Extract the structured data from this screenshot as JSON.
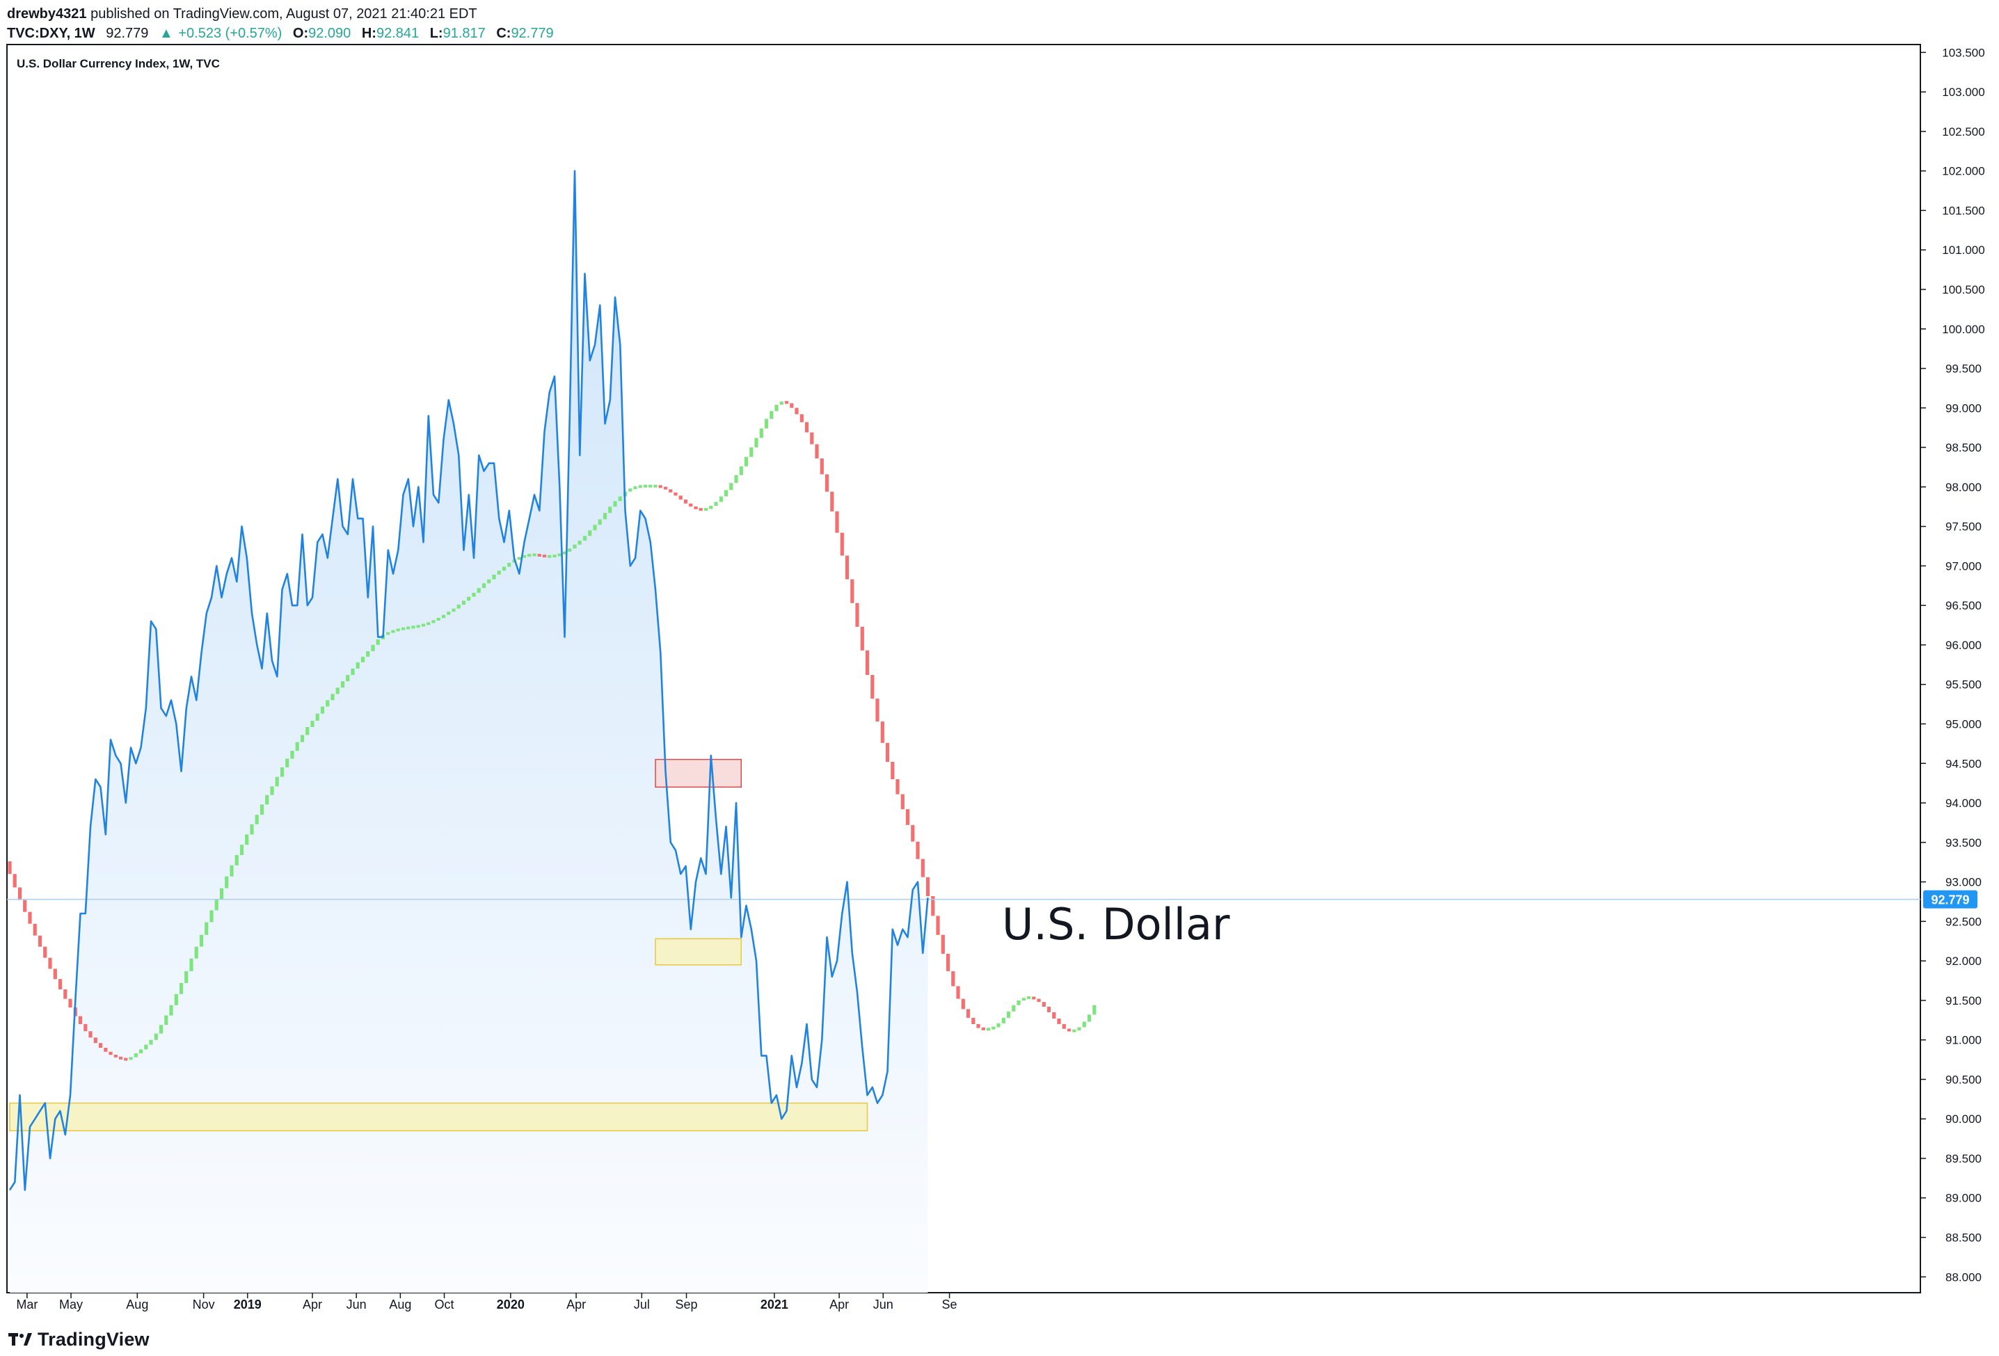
{
  "header": {
    "author": "drewby4321",
    "published_text": "published on TradingView.com, August 07, 2021 21:40:21 EDT",
    "symbol": "TVC:DXY, 1W",
    "last": "92.779",
    "change_arrow": "▲",
    "change": "+0.523 (+0.57%)",
    "o_label": "O:",
    "o_value": "92.090",
    "h_label": "H:",
    "h_value": "92.841",
    "l_label": "L:",
    "l_value": "91.817",
    "c_label": "C:",
    "c_value": "92.779"
  },
  "footer": {
    "brand": "TradingView"
  },
  "colors": {
    "line": "#2183e0",
    "area_top": "#cfe5fa",
    "area_bottom": "#fafcff",
    "ma_up": "#7ee57e",
    "ma_down": "#f46f70",
    "zone_yellow_fill": "#f6f2bf",
    "zone_yellow_stroke": "#e8c840",
    "zone_red_fill": "#f7d8d8",
    "zone_red_stroke": "#d84a4a",
    "price_tag": "#2196f3",
    "price_line": "#a9cfee"
  },
  "chart_data": {
    "type": "area",
    "title": "U.S. Dollar Currency Index, 1W, TVC",
    "annotation": "U.S. Dollar",
    "interval": "1W",
    "y_axis": {
      "position": "right",
      "ylim": [
        87.8,
        103.6
      ],
      "ticks": [
        "88.000",
        "88.500",
        "89.000",
        "89.500",
        "90.000",
        "90.500",
        "91.000",
        "91.500",
        "92.000",
        "92.500",
        "93.000",
        "93.500",
        "94.000",
        "94.500",
        "95.000",
        "95.500",
        "96.000",
        "96.500",
        "97.000",
        "97.500",
        "98.000",
        "98.500",
        "99.000",
        "99.500",
        "100.000",
        "100.500",
        "101.000",
        "101.500",
        "102.000",
        "102.500",
        "103.000",
        "103.500"
      ]
    },
    "x_axis": {
      "labels": [
        {
          "text": "Mar",
          "date": "2018-03-01"
        },
        {
          "text": "May",
          "date": "2018-05-01"
        },
        {
          "text": "Aug",
          "date": "2018-08-01"
        },
        {
          "text": "Nov",
          "date": "2018-11-01"
        },
        {
          "text": "2019",
          "date": "2019-01-01",
          "bold": true
        },
        {
          "text": "Apr",
          "date": "2019-04-01"
        },
        {
          "text": "Jun",
          "date": "2019-06-01"
        },
        {
          "text": "Aug",
          "date": "2019-08-01"
        },
        {
          "text": "Oct",
          "date": "2019-10-01"
        },
        {
          "text": "2020",
          "date": "2020-01-01",
          "bold": true
        },
        {
          "text": "Apr",
          "date": "2020-04-01"
        },
        {
          "text": "Jul",
          "date": "2020-07-01"
        },
        {
          "text": "Sep",
          "date": "2020-09-01"
        },
        {
          "text": "2021",
          "date": "2021-01-01",
          "bold": true
        },
        {
          "text": "Apr",
          "date": "2021-04-01"
        },
        {
          "text": "Jun",
          "date": "2021-06-01"
        },
        {
          "text": "Se",
          "date": "2021-09-01"
        }
      ]
    },
    "last_price": "92.779",
    "series": [
      {
        "name": "TVC:DXY",
        "style": "line-area",
        "values": [
          89.1,
          89.2,
          90.3,
          89.1,
          89.9,
          90.0,
          90.1,
          90.2,
          89.5,
          90.0,
          90.1,
          89.8,
          90.3,
          91.5,
          92.6,
          92.6,
          93.7,
          94.3,
          94.2,
          93.6,
          94.8,
          94.6,
          94.5,
          94.0,
          94.7,
          94.5,
          94.7,
          95.2,
          96.3,
          96.2,
          95.2,
          95.1,
          95.3,
          95.0,
          94.4,
          95.2,
          95.6,
          95.3,
          95.9,
          96.4,
          96.6,
          97.0,
          96.6,
          96.9,
          97.1,
          96.8,
          97.5,
          97.1,
          96.4,
          96.0,
          95.7,
          96.4,
          95.8,
          95.6,
          96.7,
          96.9,
          96.5,
          96.5,
          97.4,
          96.5,
          96.6,
          97.3,
          97.4,
          97.1,
          97.6,
          98.1,
          97.5,
          97.4,
          98.1,
          97.6,
          97.6,
          96.6,
          97.5,
          96.1,
          96.1,
          97.2,
          96.9,
          97.2,
          97.9,
          98.1,
          97.5,
          98.0,
          97.3,
          98.9,
          97.9,
          97.8,
          98.6,
          99.1,
          98.8,
          98.4,
          97.2,
          97.9,
          97.1,
          98.4,
          98.2,
          98.3,
          98.3,
          97.6,
          97.3,
          97.7,
          97.1,
          96.9,
          97.3,
          97.6,
          97.9,
          97.7,
          98.7,
          99.2,
          99.4,
          98.0,
          96.1,
          98.9,
          102.0,
          98.4,
          100.7,
          99.6,
          99.8,
          100.3,
          98.8,
          99.1,
          100.4,
          99.8,
          97.7,
          97.0,
          97.1,
          97.7,
          97.6,
          97.3,
          96.7,
          95.9,
          94.4,
          93.5,
          93.4,
          93.1,
          93.2,
          92.4,
          93.0,
          93.3,
          93.1,
          94.6,
          93.8,
          93.1,
          93.7,
          92.8,
          94.0,
          92.3,
          92.7,
          92.4,
          92.0,
          90.8,
          90.8,
          90.2,
          90.3,
          90.0,
          90.1,
          90.8,
          90.4,
          90.7,
          91.2,
          90.5,
          90.4,
          91.0,
          92.3,
          91.8,
          92.0,
          92.6,
          93.0,
          92.1,
          91.6,
          90.9,
          90.3,
          90.4,
          90.2,
          90.3,
          90.6,
          92.4,
          92.2,
          92.4,
          92.3,
          92.9,
          93.0,
          92.1,
          92.8
        ]
      },
      {
        "name": "Moving average (bars, green = rising, red = falling)",
        "style": "ma-bars",
        "start_index": 0,
        "values": [
          93.1,
          92.93,
          92.77,
          92.62,
          92.47,
          92.32,
          92.18,
          92.04,
          91.9,
          91.77,
          91.64,
          91.52,
          91.41,
          91.3,
          91.2,
          91.11,
          91.03,
          90.96,
          90.9,
          90.85,
          90.81,
          90.78,
          90.76,
          90.75,
          90.78,
          90.83,
          90.88,
          90.94,
          91.0,
          91.08,
          91.19,
          91.31,
          91.44,
          91.58,
          91.72,
          91.87,
          92.03,
          92.18,
          92.33,
          92.49,
          92.64,
          92.78,
          92.92,
          93.07,
          93.21,
          93.34,
          93.47,
          93.6,
          93.73,
          93.85,
          93.98,
          94.1,
          94.21,
          94.33,
          94.45,
          94.56,
          94.66,
          94.77,
          94.86,
          94.96,
          95.04,
          95.13,
          95.22,
          95.3,
          95.38,
          95.46,
          95.54,
          95.62,
          95.7,
          95.78,
          95.85,
          95.92,
          96.0,
          96.07,
          96.13,
          96.16,
          96.18,
          96.2,
          96.21,
          96.22,
          96.23,
          96.24,
          96.26,
          96.28,
          96.31,
          96.34,
          96.38,
          96.42,
          96.46,
          96.51,
          96.56,
          96.61,
          96.66,
          96.72,
          96.78,
          96.83,
          96.89,
          96.94,
          96.99,
          97.04,
          97.08,
          97.11,
          97.13,
          97.14,
          97.14,
          97.13,
          97.12,
          97.12,
          97.13,
          97.15,
          97.18,
          97.22,
          97.27,
          97.32,
          97.38,
          97.45,
          97.52,
          97.59,
          97.67,
          97.75,
          97.82,
          97.88,
          97.94,
          97.98,
          98.0,
          98.01,
          98.01,
          98.01,
          98.01,
          98.0,
          97.97,
          97.93,
          97.89,
          97.84,
          97.79,
          97.75,
          97.72,
          97.71,
          97.72,
          97.76,
          97.81,
          97.88,
          97.96,
          98.05,
          98.15,
          98.26,
          98.38,
          98.5,
          98.62,
          98.74,
          98.86,
          98.96,
          99.04,
          99.08,
          99.06,
          99.0,
          98.92,
          98.82,
          98.69,
          98.54,
          98.36,
          98.16,
          97.94,
          97.69,
          97.42,
          97.13,
          96.83,
          96.53,
          96.23,
          95.93,
          95.62,
          95.32,
          95.03,
          94.76,
          94.52,
          94.3,
          94.11,
          93.92,
          93.72,
          93.51,
          93.29,
          93.06,
          92.82,
          92.57,
          92.33,
          92.09,
          91.87,
          91.68,
          91.52,
          91.39,
          91.28,
          91.2,
          91.15,
          91.13,
          91.14,
          91.16,
          91.21,
          91.28,
          91.36,
          91.44,
          91.5,
          91.53,
          91.54,
          91.52,
          91.48,
          91.42,
          91.35,
          91.27,
          91.2,
          91.14,
          91.11,
          91.12,
          91.16,
          91.23,
          91.32,
          91.44
        ]
      }
    ],
    "zones": [
      {
        "name": "support-zone",
        "color": "yellow",
        "y_low": 89.85,
        "y_high": 90.2,
        "x_start": "2018-02-05",
        "x_end": "2021-05-10"
      },
      {
        "name": "resistance-zone",
        "color": "red",
        "y_low": 94.2,
        "y_high": 94.55,
        "x_start": "2020-07-20",
        "x_end": "2020-11-16"
      },
      {
        "name": "mid-zone",
        "color": "yellow",
        "y_low": 91.95,
        "y_high": 92.28,
        "x_start": "2020-07-20",
        "x_end": "2020-11-16"
      }
    ]
  }
}
